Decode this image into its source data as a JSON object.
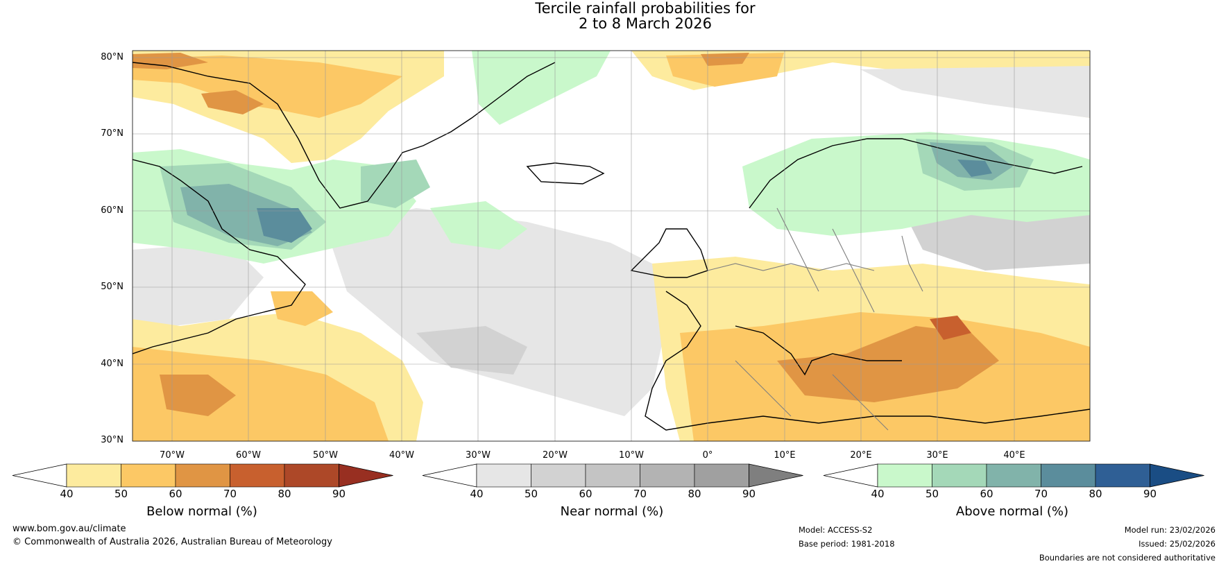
{
  "title": {
    "line1": "Tercile rainfall probabilities for",
    "line2": "2 to 8 March 2026"
  },
  "map": {
    "lat_labels": [
      "80°N",
      "70°N",
      "60°N",
      "50°N",
      "40°N",
      "30°N"
    ],
    "lon_labels": [
      "70°W",
      "60°W",
      "50°W",
      "40°W",
      "30°W",
      "20°W",
      "10°W",
      "0°",
      "10°E",
      "20°E",
      "30°E",
      "40°E"
    ],
    "colors": {
      "below": [
        "#fdeb9e",
        "#fcc865",
        "#e09544",
        "#c8602e",
        "#ad4828",
        "#982f21"
      ],
      "near": [
        "#e6e6e6",
        "#d2d2d2",
        "#c4c4c4",
        "#b3b3b3",
        "#a0a0a0",
        "#7f7f7f"
      ],
      "above": [
        "#c9f8cb",
        "#a4d8b8",
        "#81b3aa",
        "#5b8d9c",
        "#2f5f95",
        "#1a4d84"
      ]
    }
  },
  "colorbars": [
    {
      "name": "below",
      "label": "Below normal (%)",
      "ticks": [
        "40",
        "50",
        "60",
        "70",
        "80",
        "90"
      ]
    },
    {
      "name": "near",
      "label": "Near normal (%)",
      "ticks": [
        "40",
        "50",
        "60",
        "70",
        "80",
        "90"
      ]
    },
    {
      "name": "above",
      "label": "Above normal (%)",
      "ticks": [
        "40",
        "50",
        "60",
        "70",
        "80",
        "90"
      ]
    }
  ],
  "footer": {
    "website": "www.bom.gov.au/climate",
    "copyright": "© Commonwealth of Australia 2026, Australian Bureau of Meteorology",
    "model": "Model: ACCESS-S2",
    "base_period": "Base period: 1981-2018",
    "model_run": "Model run: 23/02/2026",
    "issued": "Issued: 25/02/2026",
    "disclaimer": "Boundaries are not considered authoritative"
  }
}
